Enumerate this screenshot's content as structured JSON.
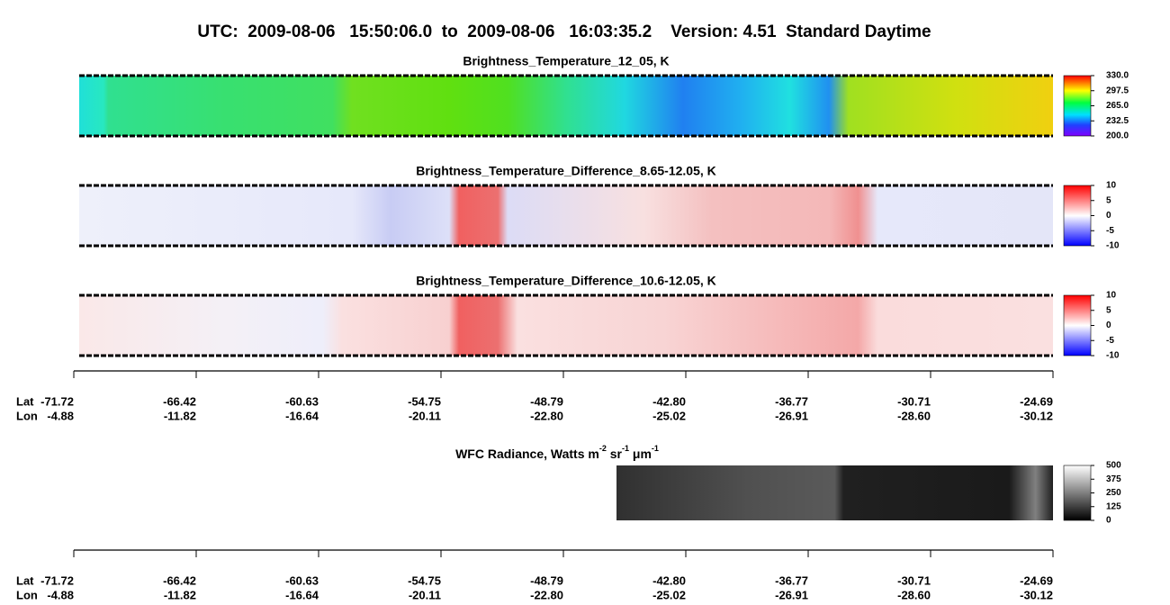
{
  "title": "UTC:  2009-08-06   15:50:06.0  to  2009-08-06   16:03:35.2    Version: 4.51  Standard Daytime",
  "panels": [
    {
      "title": "Brightness_Temperature_12_05, K",
      "clim": [
        200,
        330
      ],
      "cticks": [
        {
          "value": 330,
          "label": "330.0"
        },
        {
          "value": 297.5,
          "label": "297.5"
        },
        {
          "value": 265,
          "label": "265.0"
        },
        {
          "value": 232.5,
          "label": "232.5"
        },
        {
          "value": 200,
          "label": "200.0"
        }
      ]
    },
    {
      "title": "Brightness_Temperature_Difference_8.65-12.05, K",
      "clim": [
        -10,
        10
      ],
      "cticks": [
        10,
        5,
        0,
        -5,
        -10
      ]
    },
    {
      "title": "Brightness_Temperature_Difference_10.6-12.05, K",
      "clim": [
        -10,
        10
      ],
      "cticks": [
        10,
        5,
        0,
        -5,
        -10
      ]
    }
  ],
  "wfc": {
    "title_parts": [
      "WFC Radiance, Watts m",
      "-2",
      " sr",
      "-1",
      " μm",
      "-1"
    ],
    "clim": [
      0,
      500
    ],
    "cticks": [
      500,
      375,
      250,
      125,
      0
    ]
  },
  "row_labels": [
    "Lat",
    "Lon"
  ],
  "lat": [
    -71.72,
    -66.42,
    -60.63,
    -54.75,
    -48.79,
    {
      "value": -42.8,
      "label": "-42.80"
    },
    -36.77,
    -30.71,
    -24.69
  ],
  "lon": [
    -4.88,
    -11.82,
    -16.64,
    -20.11,
    {
      "value": -22.8,
      "label": "-22.80"
    },
    -25.02,
    -26.91,
    {
      "value": -28.6,
      "label": "-28.60"
    },
    -30.12
  ]
}
